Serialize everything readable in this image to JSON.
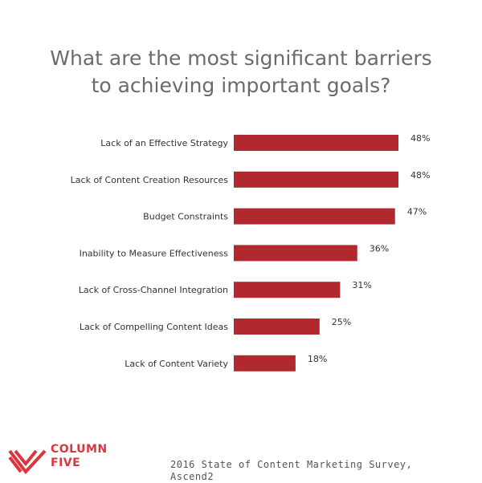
{
  "chart_data": {
    "type": "bar",
    "orientation": "horizontal",
    "title_lines": [
      "What are the most significant barriers",
      "to achieving important goals?"
    ],
    "categories": [
      "Lack of an Effective Strategy",
      "Lack of Content Creation Resources",
      "Budget Constraints",
      "Inability to Measure Effectiveness",
      "Lack of Cross-Channel Integration",
      "Lack of Compelling Content Ideas",
      "Lack of Content Variety"
    ],
    "values": [
      48,
      48,
      47,
      36,
      31,
      25,
      18
    ],
    "value_labels": [
      "48%",
      "48%",
      "47%",
      "36%",
      "31%",
      "25%",
      "18%"
    ],
    "xlim": [
      0,
      48
    ],
    "grid": false,
    "legend": "none",
    "bar_color": "#b1282e"
  },
  "brand": {
    "line1": "COLUMN",
    "line2": "FIVE",
    "color": "#d9363e"
  },
  "source": {
    "line1": "2016 State of Content Marketing Survey,",
    "line2": "Ascend2"
  }
}
